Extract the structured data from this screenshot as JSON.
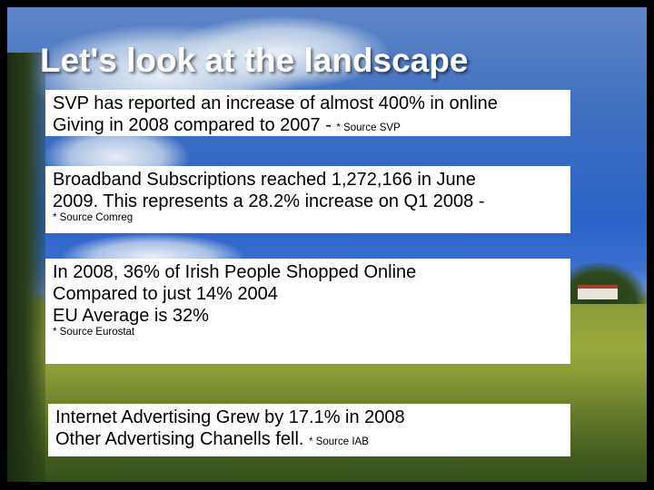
{
  "slide": {
    "title": "Let's look at the landscape",
    "boxes": [
      {
        "line1": "SVP has reported an increase of almost 400% in online",
        "line2": "Giving in 2008 compared to 2007 - ",
        "source": "* Source SVP"
      },
      {
        "line1": "Broadband Subscriptions reached 1,272,166 in June",
        "line2": "2009. This represents a 28.2% increase on Q1 2008 -",
        "source": "* Source Comreg"
      },
      {
        "line1": "In 2008, 36% of Irish People Shopped Online",
        "line2": "Compared to just 14% 2004",
        "line3": "EU Average is 32%",
        "source": "* Source Eurostat"
      },
      {
        "line1": "Internet Advertising Grew by 17.1% in 2008",
        "line2": "Other Advertising Chanells fell. ",
        "source": "* Source IAB"
      }
    ]
  },
  "colors": {
    "background_border": "#000000",
    "title": "#ffffff",
    "box_fill": "#ffffff",
    "text": "#000000"
  }
}
